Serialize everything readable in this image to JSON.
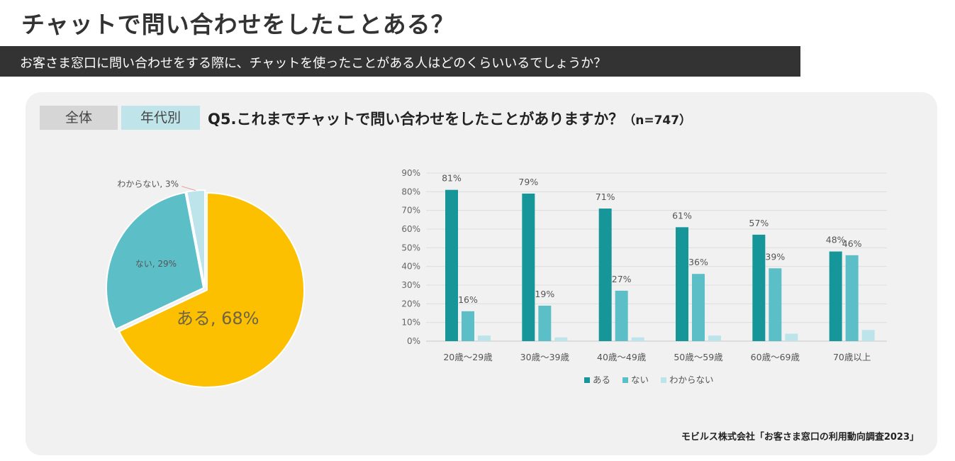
{
  "page": {
    "title": "チャットで問い合わせをしたことある？",
    "subtitle": "お客さま窓口に問い合わせをする際に、チャットを使ったことがある人はどのくらいいるでしょうか？",
    "tabs": {
      "all": "全体",
      "age": "年代別"
    },
    "question": "Q5.これまでチャットで問い合わせをしたことがありますか？",
    "sample": "（n=747）",
    "source": "モビルス株式会社「お客さま窓口の利用動向調査2023」"
  },
  "colors": {
    "aru": "#17969a",
    "nai": "#5cbfc7",
    "wakaranai": "#bde4ea",
    "pie_aru": "#fcc000",
    "pie_nai": "#5cbfc7",
    "pie_wakaranai": "#bde4ea"
  },
  "chart_data": [
    {
      "type": "pie",
      "title": "全体",
      "slices": [
        {
          "label": "ある",
          "value": 68,
          "text": "ある, 68%"
        },
        {
          "label": "ない",
          "value": 29,
          "text": "ない, 29%"
        },
        {
          "label": "わからない",
          "value": 3,
          "text": "わからない, 3%"
        }
      ]
    },
    {
      "type": "bar",
      "title": "年代別",
      "categories": [
        "20歳～29歳",
        "30歳～39歳",
        "40歳～49歳",
        "50歳～59歳",
        "60歳～69歳",
        "70歳以上"
      ],
      "series": [
        {
          "name": "ある",
          "values": [
            81,
            79,
            71,
            61,
            57,
            48
          ],
          "labels": [
            "81%",
            "79%",
            "71%",
            "61%",
            "57%",
            "48%"
          ]
        },
        {
          "name": "ない",
          "values": [
            16,
            19,
            27,
            36,
            39,
            46
          ],
          "labels": [
            "16%",
            "19%",
            "27%",
            "36%",
            "39%",
            "46%"
          ]
        },
        {
          "name": "わからない",
          "values": [
            3,
            2,
            2,
            3,
            4,
            6
          ]
        }
      ],
      "yticks": [
        "0%",
        "10%",
        "20%",
        "30%",
        "40%",
        "50%",
        "60%",
        "70%",
        "80%",
        "90%"
      ],
      "ylim": [
        0,
        90
      ],
      "legend": "bottom"
    }
  ]
}
